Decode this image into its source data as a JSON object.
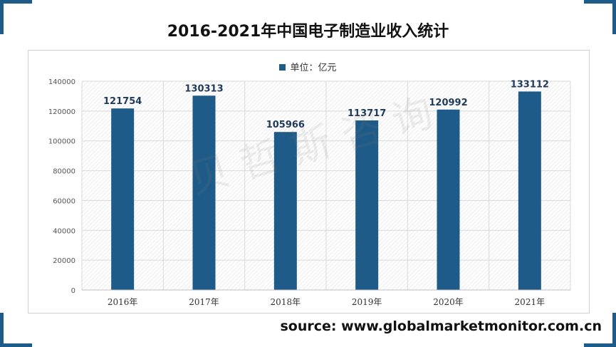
{
  "title": "2016-2021年中国电子制造业收入统计",
  "legend": {
    "label": "单位：亿元"
  },
  "watermark": "贝哲斯咨询",
  "source": "source: www.globalmarketmonitor.com.cn",
  "colors": {
    "bar": "#1f5b88",
    "accent": "#1f5b88"
  },
  "chart_data": {
    "type": "bar",
    "categories": [
      "2016年",
      "2017年",
      "2018年",
      "2019年",
      "2020年",
      "2021年"
    ],
    "values": [
      121754,
      130313,
      105966,
      113717,
      120992,
      133112
    ],
    "y_ticks": [
      0,
      20000,
      40000,
      60000,
      80000,
      100000,
      120000,
      140000
    ],
    "ylim": [
      0,
      140000
    ],
    "grid": true,
    "legend_position": "top-center"
  }
}
